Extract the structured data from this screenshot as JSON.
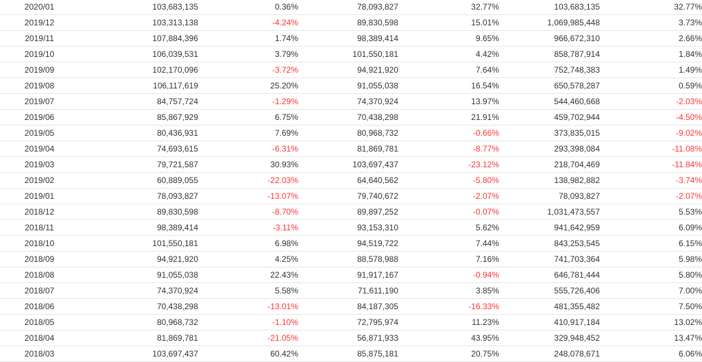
{
  "colors": {
    "text": "#333333",
    "negative": "#ff3333",
    "row_border": "#e6e6e6"
  },
  "table": {
    "rows": [
      [
        "2020/01",
        "103,683,135",
        "0.36%",
        "78,093,827",
        "32.77%",
        "103,683,135",
        "32.77%"
      ],
      [
        "2019/12",
        "103,313,138",
        "-4.24%",
        "89,830,598",
        "15.01%",
        "1,069,985,448",
        "3.73%"
      ],
      [
        "2019/11",
        "107,884,396",
        "1.74%",
        "98,389,414",
        "9.65%",
        "966,672,310",
        "2.66%"
      ],
      [
        "2019/10",
        "106,039,531",
        "3.79%",
        "101,550,181",
        "4.42%",
        "858,787,914",
        "1.84%"
      ],
      [
        "2019/09",
        "102,170,096",
        "-3.72%",
        "94,921,920",
        "7.64%",
        "752,748,383",
        "1.49%"
      ],
      [
        "2019/08",
        "106,117,619",
        "25.20%",
        "91,055,038",
        "16.54%",
        "650,578,287",
        "0.59%"
      ],
      [
        "2019/07",
        "84,757,724",
        "-1.29%",
        "74,370,924",
        "13.97%",
        "544,460,668",
        "-2.03%"
      ],
      [
        "2019/06",
        "85,867,929",
        "6.75%",
        "70,438,298",
        "21.91%",
        "459,702,944",
        "-4.50%"
      ],
      [
        "2019/05",
        "80,436,931",
        "7.69%",
        "80,968,732",
        "-0.66%",
        "373,835,015",
        "-9.02%"
      ],
      [
        "2019/04",
        "74,693,615",
        "-6.31%",
        "81,869,781",
        "-8.77%",
        "293,398,084",
        "-11.08%"
      ],
      [
        "2019/03",
        "79,721,587",
        "30.93%",
        "103,697,437",
        "-23.12%",
        "218,704,469",
        "-11.84%"
      ],
      [
        "2019/02",
        "60,889,055",
        "-22.03%",
        "64,640,562",
        "-5.80%",
        "138,982,882",
        "-3.74%"
      ],
      [
        "2019/01",
        "78,093,827",
        "-13.07%",
        "79,740,672",
        "-2.07%",
        "78,093,827",
        "-2.07%"
      ],
      [
        "2018/12",
        "89,830,598",
        "-8.70%",
        "89,897,252",
        "-0.07%",
        "1,031,473,557",
        "5.53%"
      ],
      [
        "2018/11",
        "98,389,414",
        "-3.11%",
        "93,153,310",
        "5.62%",
        "941,642,959",
        "6.09%"
      ],
      [
        "2018/10",
        "101,550,181",
        "6.98%",
        "94,519,722",
        "7.44%",
        "843,253,545",
        "6.15%"
      ],
      [
        "2018/09",
        "94,921,920",
        "4.25%",
        "88,578,988",
        "7.16%",
        "741,703,364",
        "5.98%"
      ],
      [
        "2018/08",
        "91,055,038",
        "22.43%",
        "91,917,167",
        "-0.94%",
        "646,781,444",
        "5.80%"
      ],
      [
        "2018/07",
        "74,370,924",
        "5.58%",
        "71,611,190",
        "3.85%",
        "555,726,406",
        "7.00%"
      ],
      [
        "2018/06",
        "70,438,298",
        "-13.01%",
        "84,187,305",
        "-16.33%",
        "481,355,482",
        "7.50%"
      ],
      [
        "2018/05",
        "80,968,732",
        "-1.10%",
        "72,795,974",
        "11.23%",
        "410,917,184",
        "13.02%"
      ],
      [
        "2018/04",
        "81,869,781",
        "-21.05%",
        "56,871,933",
        "43.95%",
        "329,948,452",
        "13.47%"
      ],
      [
        "2018/03",
        "103,697,437",
        "60.42%",
        "85,875,181",
        "20.75%",
        "248,078,671",
        "6.06%"
      ]
    ]
  }
}
